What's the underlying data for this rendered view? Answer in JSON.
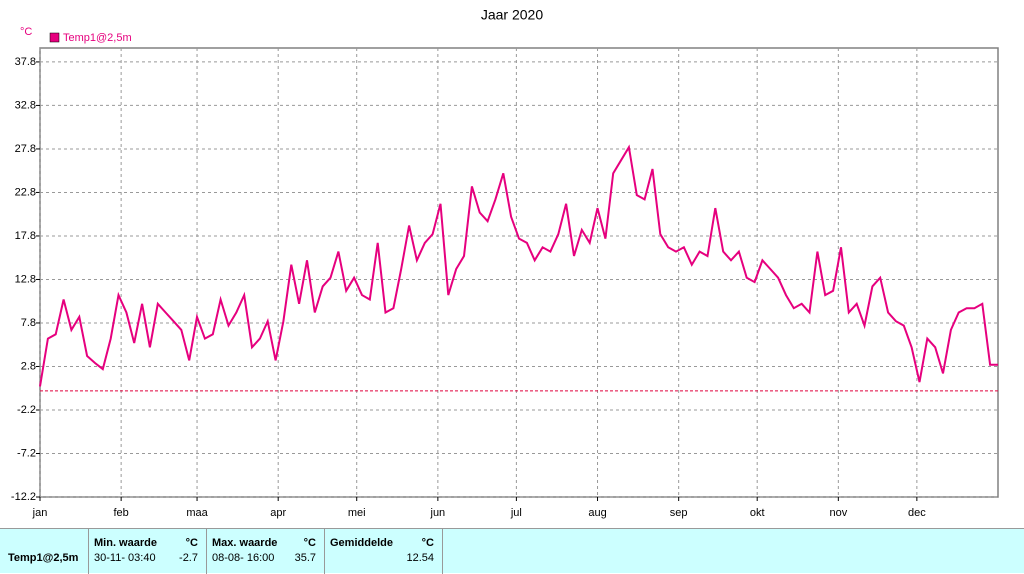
{
  "chart_data": {
    "type": "line",
    "title": "Jaar 2020",
    "ylabel": "°C",
    "x": [
      0,
      3,
      6,
      9,
      12,
      15,
      18,
      21,
      24,
      27,
      30,
      33,
      36,
      39,
      42,
      45,
      48,
      51,
      54,
      57,
      60,
      63,
      66,
      69,
      72,
      75,
      78,
      81,
      84,
      87,
      90,
      93,
      96,
      99,
      102,
      105,
      108,
      111,
      114,
      117,
      120,
      123,
      126,
      129,
      132,
      135,
      138,
      141,
      144,
      147,
      150,
      153,
      156,
      159,
      162,
      165,
      168,
      171,
      174,
      177,
      180,
      183,
      186,
      189,
      192,
      195,
      198,
      201,
      204,
      207,
      210,
      213,
      216,
      219,
      222,
      225,
      228,
      231,
      234,
      237,
      240,
      243,
      246,
      249,
      252,
      255,
      258,
      261,
      264,
      267,
      270,
      273,
      276,
      279,
      282,
      285,
      288,
      291,
      294,
      297,
      300,
      303,
      306,
      309,
      312,
      315,
      318,
      321,
      324,
      327,
      330,
      333,
      336,
      339,
      342,
      345,
      348,
      351,
      354,
      357,
      360,
      363,
      366
    ],
    "series": [
      {
        "name": "Temp1@2,5m",
        "color": "#e6007e",
        "values": [
          0.5,
          6,
          6.5,
          10.5,
          7,
          8.5,
          4,
          3.2,
          2.5,
          6,
          11,
          9,
          5.5,
          10,
          5,
          10,
          9,
          8,
          7,
          3.5,
          8.5,
          6,
          6.5,
          10.5,
          7.5,
          9,
          11,
          5,
          6,
          8,
          3.5,
          8,
          14.5,
          10,
          15,
          9,
          12,
          13,
          16,
          11.5,
          13,
          11,
          10.5,
          17,
          9,
          9.5,
          14,
          19,
          15,
          17,
          18,
          21.5,
          11,
          14,
          15.5,
          23.5,
          20.5,
          19.5,
          22,
          25,
          20,
          17.5,
          17,
          15,
          16.5,
          16,
          18,
          21.5,
          15.5,
          18.5,
          17,
          21,
          17.5,
          25,
          26.5,
          28,
          22.5,
          22,
          25.5,
          18,
          16.5,
          16,
          16.5,
          14.5,
          16,
          15.5,
          21,
          16,
          15,
          16,
          13,
          12.5,
          15,
          14,
          13,
          11,
          9.5,
          10,
          9,
          16,
          11,
          11.5,
          16.5,
          9,
          10,
          7.5,
          12,
          13,
          9,
          8,
          7.5,
          5,
          1,
          6,
          5,
          2,
          7,
          9,
          9.5,
          9.5,
          10,
          3,
          3
        ]
      }
    ],
    "xlim": [
      0,
      366
    ],
    "xticks": [
      {
        "value": 0,
        "label": "jan"
      },
      {
        "value": 31,
        "label": "feb"
      },
      {
        "value": 60,
        "label": "maa"
      },
      {
        "value": 91,
        "label": "apr"
      },
      {
        "value": 121,
        "label": "mei"
      },
      {
        "value": 152,
        "label": "jun"
      },
      {
        "value": 182,
        "label": "jul"
      },
      {
        "value": 213,
        "label": "aug"
      },
      {
        "value": 244,
        "label": "sep"
      },
      {
        "value": 274,
        "label": "okt"
      },
      {
        "value": 305,
        "label": "nov"
      },
      {
        "value": 335,
        "label": "dec"
      }
    ],
    "ylim": [
      -12.2,
      39.4
    ],
    "yticks": [
      -12.2,
      -7.2,
      -2.2,
      2.8,
      7.8,
      12.8,
      17.8,
      22.8,
      27.8,
      32.8,
      37.8
    ],
    "grid": true,
    "hline": {
      "value": 0,
      "color": "#e0003c"
    },
    "legend": "top-left"
  },
  "summary_table": {
    "row_label": "Temp1@2,5m",
    "columns": [
      {
        "header": "Min. waarde",
        "unit": "°C",
        "time": "30-11- 03:40",
        "value": -2.7
      },
      {
        "header": "Max. waarde",
        "unit": "°C",
        "time": "08-08- 16:00",
        "value": 35.7
      },
      {
        "header": "Gemiddelde",
        "unit": "°C",
        "value": 12.54
      }
    ]
  }
}
